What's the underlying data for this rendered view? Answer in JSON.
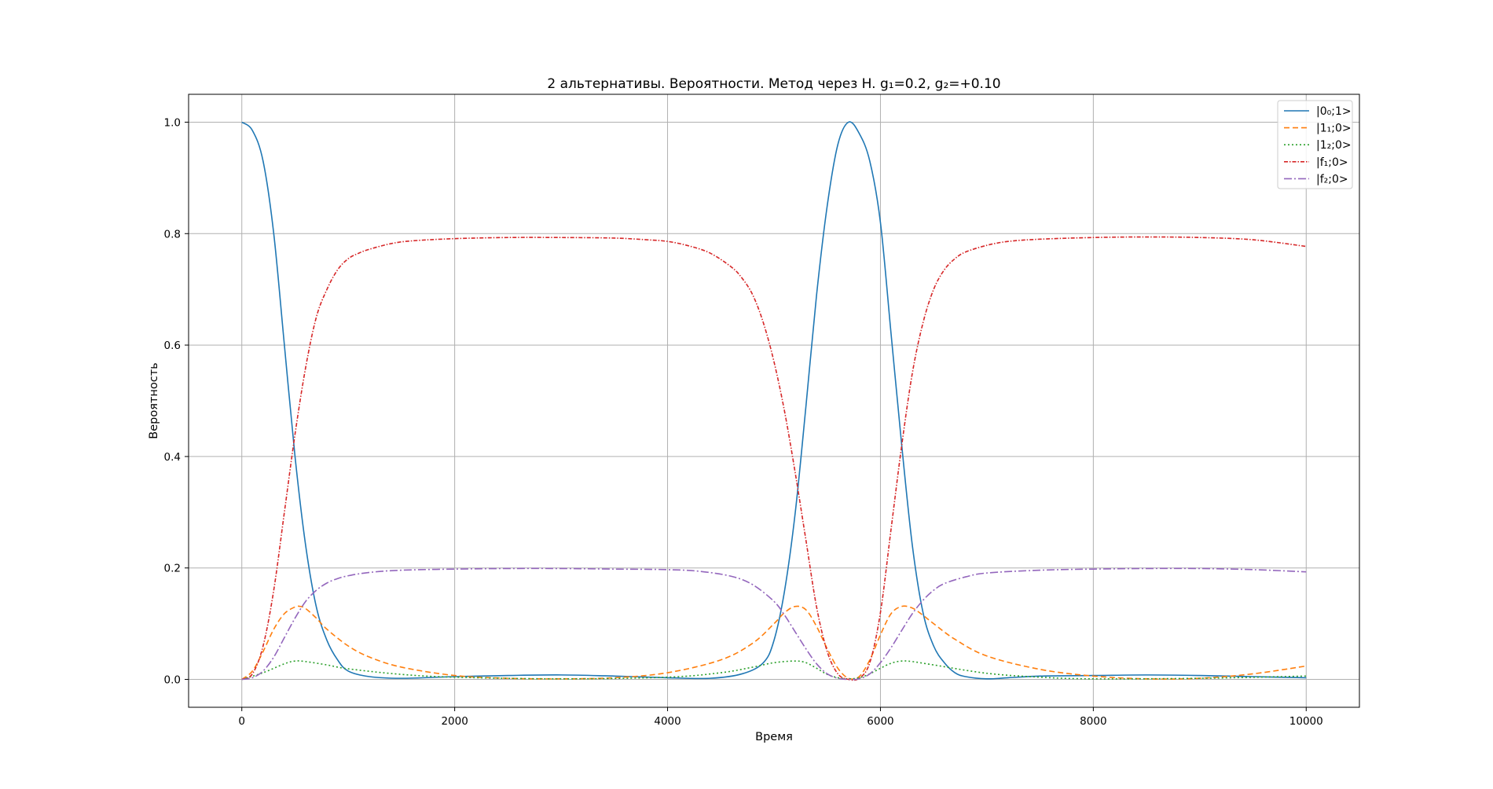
{
  "chart_data": {
    "type": "line",
    "title": "2 альтернативы. Вероятности. Метод через H. g₁=0.2, g₂=+0.10",
    "xlabel": "Время",
    "ylabel": "Вероятность",
    "xlim": [
      -500,
      10500
    ],
    "ylim": [
      -0.05,
      1.05
    ],
    "xticks": [
      0,
      2000,
      4000,
      6000,
      8000,
      10000
    ],
    "xtick_labels": [
      "0",
      "2000",
      "4000",
      "6000",
      "8000",
      "10000"
    ],
    "yticks": [
      0.0,
      0.2,
      0.4,
      0.6,
      0.8,
      1.0
    ],
    "ytick_labels": [
      "0.0",
      "0.2",
      "0.4",
      "0.6",
      "0.8",
      "1.0"
    ],
    "grid": true,
    "legend_position": "top-right",
    "series": [
      {
        "name": "|0₀;1>",
        "color": "#1f77b4",
        "style": "solid",
        "x": [
          0,
          100,
          200,
          300,
          400,
          500,
          600,
          700,
          800,
          900,
          1000,
          1200,
          1500,
          2000,
          2500,
          3000,
          3500,
          4000,
          4400,
          4700,
          4900,
          5000,
          5100,
          5200,
          5300,
          5400,
          5500,
          5600,
          5700,
          5800,
          5900,
          6000,
          6100,
          6200,
          6300,
          6400,
          6500,
          6600,
          6700,
          6800,
          7000,
          7200,
          7500,
          8000,
          8500,
          9000,
          9500,
          10000
        ],
        "y": [
          1.0,
          0.985,
          0.93,
          0.8,
          0.6,
          0.4,
          0.24,
          0.13,
          0.07,
          0.035,
          0.015,
          0.005,
          0.002,
          0.005,
          0.007,
          0.008,
          0.006,
          0.003,
          0.002,
          0.01,
          0.03,
          0.07,
          0.16,
          0.3,
          0.49,
          0.69,
          0.85,
          0.96,
          1.0,
          0.98,
          0.93,
          0.82,
          0.62,
          0.42,
          0.24,
          0.12,
          0.06,
          0.03,
          0.012,
          0.005,
          0.001,
          0.003,
          0.006,
          0.007,
          0.008,
          0.007,
          0.005,
          0.003
        ]
      },
      {
        "name": "|1₁;0>",
        "color": "#ff7f0e",
        "style": "dashed",
        "x": [
          0,
          100,
          200,
          300,
          400,
          500,
          550,
          600,
          700,
          800,
          1000,
          1200,
          1500,
          2000,
          2500,
          3000,
          3500,
          4000,
          4500,
          4800,
          5000,
          5100,
          5200,
          5300,
          5400,
          5500,
          5600,
          5700,
          5800,
          5900,
          6000,
          6100,
          6200,
          6300,
          6400,
          6500,
          6700,
          7000,
          7500,
          8000,
          8500,
          9000,
          9500,
          10000
        ],
        "y": [
          0.0,
          0.015,
          0.05,
          0.09,
          0.118,
          0.13,
          0.131,
          0.127,
          0.11,
          0.09,
          0.06,
          0.04,
          0.022,
          0.007,
          0.002,
          0.001,
          0.003,
          0.012,
          0.035,
          0.065,
          0.1,
          0.12,
          0.131,
          0.125,
          0.095,
          0.055,
          0.02,
          0.002,
          0.005,
          0.035,
          0.08,
          0.118,
          0.131,
          0.128,
          0.115,
          0.1,
          0.072,
          0.042,
          0.018,
          0.006,
          0.001,
          0.002,
          0.01,
          0.024
        ]
      },
      {
        "name": "|1₂;0>",
        "color": "#2ca02c",
        "style": "dotted",
        "x": [
          0,
          200,
          400,
          500,
          600,
          800,
          1000,
          1500,
          2000,
          3000,
          4000,
          4500,
          4800,
          5000,
          5200,
          5300,
          5400,
          5500,
          5600,
          5700,
          5800,
          5900,
          6000,
          6100,
          6200,
          6300,
          6500,
          7000,
          7500,
          8000,
          9000,
          10000
        ],
        "y": [
          0.0,
          0.012,
          0.028,
          0.033,
          0.032,
          0.026,
          0.019,
          0.009,
          0.004,
          0.001,
          0.004,
          0.012,
          0.022,
          0.03,
          0.033,
          0.03,
          0.02,
          0.009,
          0.003,
          0.001,
          0.003,
          0.01,
          0.02,
          0.029,
          0.033,
          0.032,
          0.026,
          0.011,
          0.004,
          0.001,
          0.002,
          0.006
        ]
      },
      {
        "name": "|f₁;0>",
        "color": "#d62728",
        "style": "dashdot-fine",
        "x": [
          0,
          100,
          200,
          300,
          400,
          500,
          600,
          700,
          800,
          900,
          1000,
          1100,
          1200,
          1400,
          1600,
          2000,
          2500,
          3000,
          3500,
          3800,
          4000,
          4200,
          4400,
          4600,
          4700,
          4800,
          4900,
          5000,
          5100,
          5200,
          5300,
          5400,
          5500,
          5600,
          5700,
          5800,
          5900,
          6000,
          6100,
          6200,
          6300,
          6400,
          6500,
          6600,
          6700,
          6800,
          7000,
          7200,
          7500,
          8000,
          8500,
          9000,
          9500,
          10000
        ],
        "y": [
          0.0,
          0.01,
          0.06,
          0.16,
          0.3,
          0.44,
          0.56,
          0.65,
          0.7,
          0.735,
          0.755,
          0.765,
          0.772,
          0.782,
          0.787,
          0.791,
          0.793,
          0.793,
          0.792,
          0.789,
          0.786,
          0.778,
          0.765,
          0.74,
          0.72,
          0.69,
          0.64,
          0.57,
          0.48,
          0.37,
          0.25,
          0.13,
          0.05,
          0.01,
          0.0,
          0.002,
          0.03,
          0.12,
          0.27,
          0.42,
          0.55,
          0.64,
          0.7,
          0.735,
          0.755,
          0.767,
          0.779,
          0.786,
          0.79,
          0.793,
          0.794,
          0.793,
          0.789,
          0.777
        ]
      },
      {
        "name": "|f₂;0>",
        "color": "#9467bd",
        "style": "dashdot",
        "x": [
          0,
          100,
          200,
          300,
          400,
          500,
          600,
          700,
          800,
          900,
          1000,
          1200,
          1500,
          2000,
          2500,
          3000,
          3500,
          4000,
          4300,
          4600,
          4800,
          5000,
          5100,
          5200,
          5300,
          5400,
          5500,
          5600,
          5700,
          5800,
          5900,
          6000,
          6100,
          6200,
          6300,
          6400,
          6500,
          6600,
          6800,
          7000,
          7500,
          8000,
          8500,
          9000,
          9500,
          10000
        ],
        "y": [
          0.0,
          0.003,
          0.015,
          0.04,
          0.075,
          0.11,
          0.14,
          0.16,
          0.173,
          0.181,
          0.186,
          0.192,
          0.196,
          0.198,
          0.199,
          0.199,
          0.198,
          0.197,
          0.194,
          0.185,
          0.17,
          0.14,
          0.115,
          0.085,
          0.055,
          0.028,
          0.01,
          0.002,
          0.0,
          0.001,
          0.01,
          0.03,
          0.057,
          0.088,
          0.118,
          0.142,
          0.16,
          0.172,
          0.184,
          0.191,
          0.196,
          0.198,
          0.199,
          0.199,
          0.197,
          0.193
        ]
      }
    ]
  }
}
